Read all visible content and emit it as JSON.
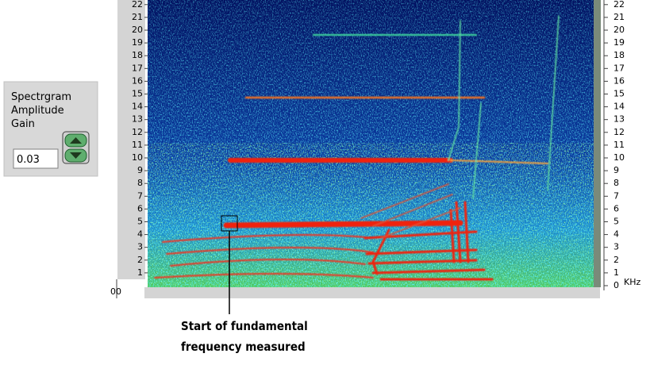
{
  "settings_panel": {
    "label_lines": [
      "Spectrgram",
      "Amplitude",
      "Gain"
    ],
    "gain_value": "0.03"
  },
  "spectrogram": {
    "left_ticks": [
      1,
      2,
      3,
      4,
      5,
      6,
      7,
      8,
      9,
      10,
      11,
      12,
      13,
      14,
      15,
      16,
      17,
      18,
      19,
      20,
      21,
      22
    ],
    "right_ticks": [
      0,
      1,
      2,
      3,
      4,
      5,
      6,
      7,
      8,
      9,
      10,
      11,
      12,
      13,
      14,
      15,
      16,
      17,
      18,
      19,
      20,
      21,
      22
    ],
    "unit": "KHz",
    "x_label_fragment": "00"
  },
  "annotation": {
    "lines": [
      "Start of fundamental",
      "frequency measured"
    ]
  }
}
